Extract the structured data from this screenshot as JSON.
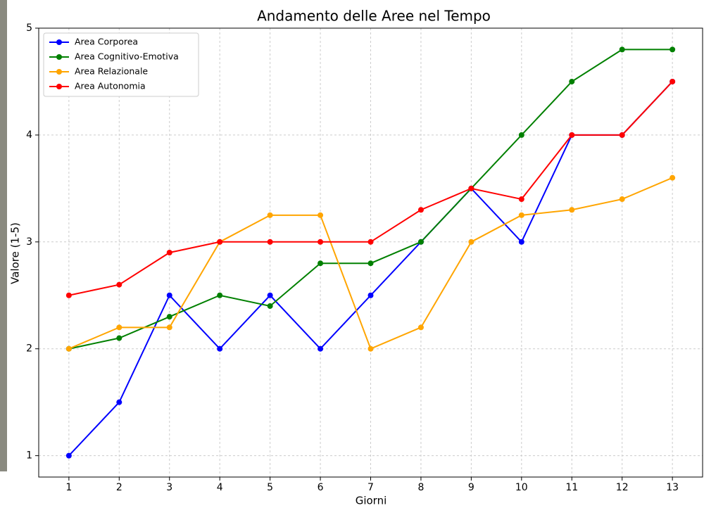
{
  "chart_data": {
    "type": "line",
    "title": "Andamento delle Aree nel Tempo",
    "xlabel": "Giorni",
    "ylabel": "Valore (1-5)",
    "x": [
      1,
      2,
      3,
      4,
      5,
      6,
      7,
      8,
      9,
      10,
      11,
      12,
      13
    ],
    "series": [
      {
        "name": "Area Corporea",
        "color": "#0000ff",
        "values": [
          1,
          1.5,
          2.5,
          2,
          2.5,
          2,
          2.5,
          3,
          3.5,
          3,
          4,
          4,
          4.5
        ]
      },
      {
        "name": "Area Cognitivo-Emotiva",
        "color": "#008000",
        "values": [
          2,
          2.1,
          2.3,
          2.5,
          2.4,
          2.8,
          2.8,
          3,
          3.5,
          4,
          4.5,
          4.8,
          4.8
        ]
      },
      {
        "name": "Area Relazionale",
        "color": "#ffa500",
        "values": [
          2,
          2.2,
          2.2,
          3,
          3.25,
          3.25,
          2,
          2.2,
          3,
          3.25,
          3.3,
          3.4,
          3.6
        ]
      },
      {
        "name": "Area Autonomia",
        "color": "#ff0000",
        "values": [
          2.5,
          2.6,
          2.9,
          3,
          3,
          3,
          3,
          3.3,
          3.5,
          3.4,
          4,
          4,
          4.5
        ]
      }
    ],
    "xlim": [
      0.4,
      13.6
    ],
    "ylim": [
      0.8,
      5
    ],
    "xticks": [
      1,
      2,
      3,
      4,
      5,
      6,
      7,
      8,
      9,
      10,
      11,
      12,
      13
    ],
    "yticks": [
      1,
      2,
      3,
      4,
      5
    ],
    "grid": true,
    "legend": "upper left"
  }
}
